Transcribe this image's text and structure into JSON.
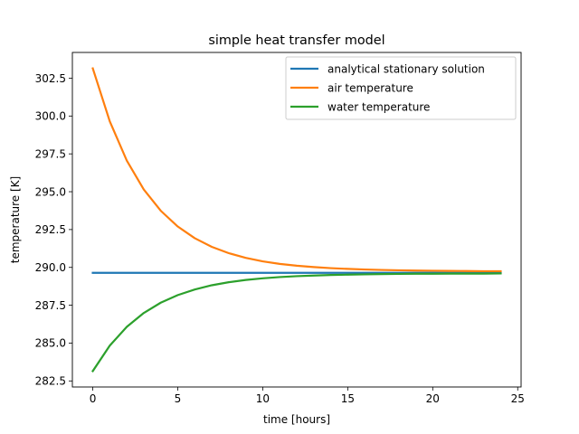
{
  "chart_data": {
    "type": "line",
    "title": "simple heat transfer model",
    "xlabel": "time [hours]",
    "ylabel": "temperature [K]",
    "xlim": [
      -1.2,
      25.2
    ],
    "ylim": [
      282.1,
      304.2
    ],
    "xticks": [
      0,
      5,
      10,
      15,
      20,
      25
    ],
    "xtick_labels": [
      "0",
      "5",
      "10",
      "15",
      "20",
      "25"
    ],
    "yticks": [
      282.5,
      285.0,
      287.5,
      290.0,
      292.5,
      295.0,
      297.5,
      300.0,
      302.5
    ],
    "ytick_labels": [
      "282.5",
      "285.0",
      "287.5",
      "290.0",
      "292.5",
      "295.0",
      "297.5",
      "300.0",
      "302.5"
    ],
    "grid": false,
    "legend_position": "top-right",
    "series": [
      {
        "name": "analytical stationary solution",
        "color": "#1f77b4",
        "x": [
          0,
          24
        ],
        "y": [
          289.64,
          289.64
        ]
      },
      {
        "name": "air temperature",
        "color": "#ff7f0e",
        "x": [
          0,
          1,
          2,
          3,
          4,
          5,
          6,
          7,
          8,
          9,
          10,
          11,
          12,
          13,
          14,
          15,
          16,
          17,
          18,
          19,
          20,
          21,
          22,
          23,
          24
        ],
        "y": [
          303.15,
          299.65,
          297.06,
          295.15,
          293.74,
          292.7,
          291.93,
          291.36,
          290.94,
          290.63,
          290.4,
          290.23,
          290.11,
          290.02,
          289.95,
          289.9,
          289.86,
          289.83,
          289.81,
          289.79,
          289.78,
          289.77,
          289.76,
          289.75,
          289.75
        ]
      },
      {
        "name": "water temperature",
        "color": "#2ca02c",
        "x": [
          0,
          1,
          2,
          3,
          4,
          5,
          6,
          7,
          8,
          9,
          10,
          11,
          12,
          13,
          14,
          15,
          16,
          17,
          18,
          19,
          20,
          21,
          22,
          23,
          24
        ],
        "y": [
          283.15,
          284.83,
          286.07,
          286.99,
          287.67,
          288.17,
          288.54,
          288.82,
          289.02,
          289.17,
          289.28,
          289.36,
          289.42,
          289.46,
          289.5,
          289.52,
          289.54,
          289.56,
          289.57,
          289.58,
          289.58,
          289.59,
          289.59,
          289.59,
          289.6
        ]
      }
    ]
  }
}
